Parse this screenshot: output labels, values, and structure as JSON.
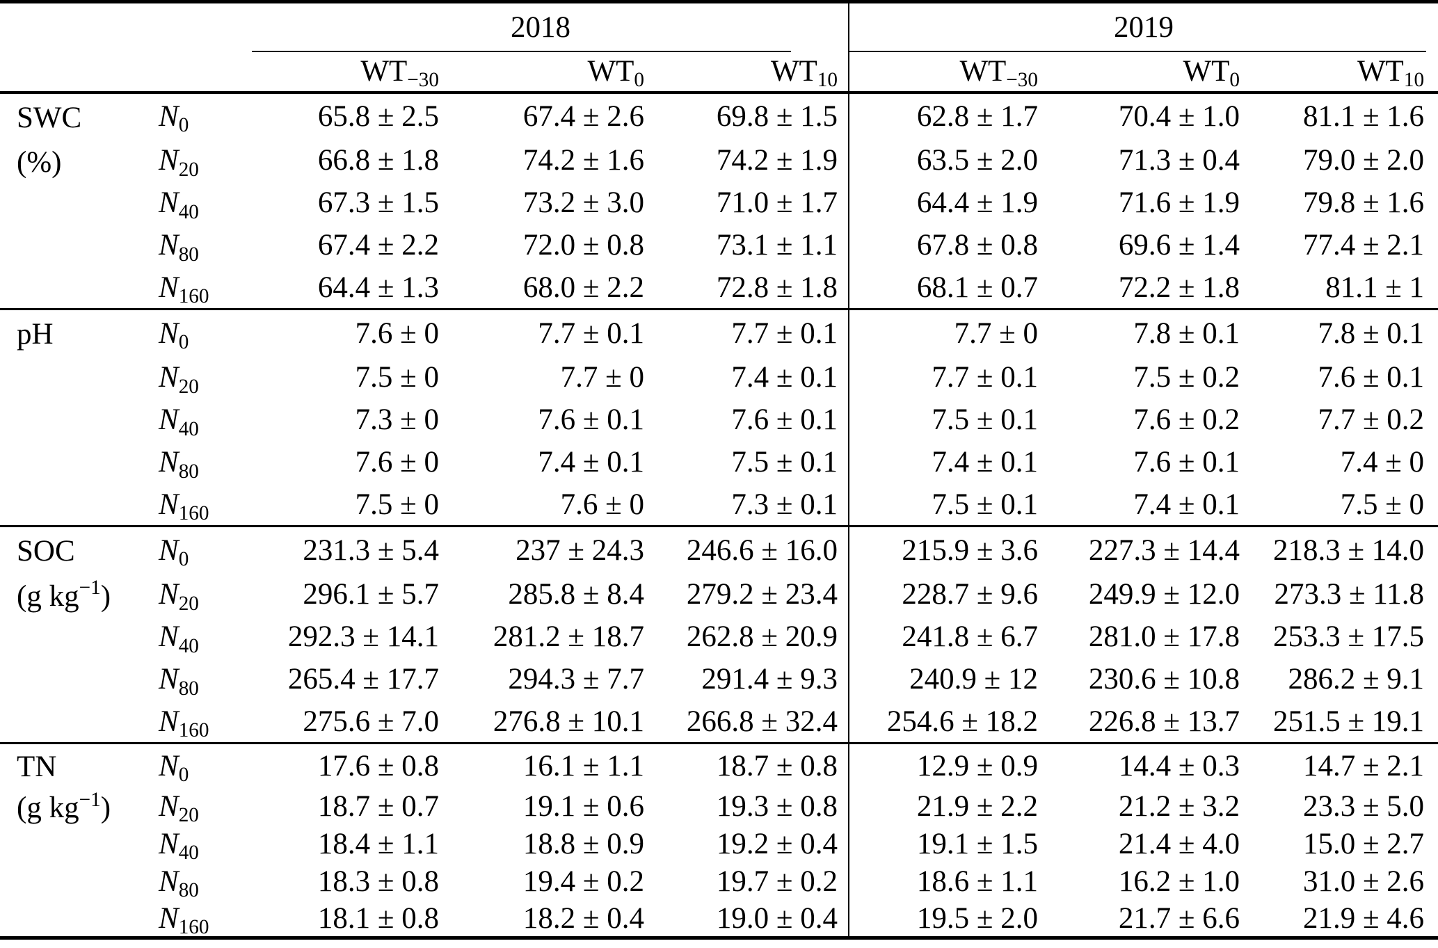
{
  "table": {
    "years": [
      "2018",
      "2019"
    ],
    "wt_columns": [
      {
        "prefix": "WT",
        "sub": "−30"
      },
      {
        "prefix": "WT",
        "sub": "0"
      },
      {
        "prefix": "WT",
        "sub": "10"
      },
      {
        "prefix": "WT",
        "sub": "−30"
      },
      {
        "prefix": "WT",
        "sub": "0"
      },
      {
        "prefix": "WT",
        "sub": "10"
      }
    ],
    "row_groups": [
      {
        "name": "SWC",
        "unit_prefix": "(%)",
        "unit_sup": "",
        "unit_suffix": "",
        "rows": [
          {
            "n": "N",
            "n_sub": "0",
            "values": [
              "65.8 ± 2.5",
              "67.4 ± 2.6",
              "69.8 ± 1.5",
              "62.8 ± 1.7",
              "70.4 ± 1.0",
              "81.1 ± 1.6"
            ]
          },
          {
            "n": "N",
            "n_sub": "20",
            "values": [
              "66.8 ± 1.8",
              "74.2 ± 1.6",
              "74.2 ± 1.9",
              "63.5 ± 2.0",
              "71.3 ± 0.4",
              "79.0 ± 2.0"
            ]
          },
          {
            "n": "N",
            "n_sub": "40",
            "values": [
              "67.3 ± 1.5",
              "73.2 ± 3.0",
              "71.0 ± 1.7",
              "64.4 ± 1.9",
              "71.6 ± 1.9",
              "79.8 ± 1.6"
            ]
          },
          {
            "n": "N",
            "n_sub": "80",
            "values": [
              "67.4 ± 2.2",
              "72.0 ± 0.8",
              "73.1 ± 1.1",
              "67.8 ± 0.8",
              "69.6 ± 1.4",
              "77.4 ± 2.1"
            ]
          },
          {
            "n": "N",
            "n_sub": "160",
            "values": [
              "64.4 ± 1.3",
              "68.0 ± 2.2",
              "72.8 ± 1.8",
              "68.1 ± 0.7",
              "72.2 ± 1.8",
              "81.1 ± 1"
            ]
          }
        ]
      },
      {
        "name": "pH",
        "unit_prefix": "",
        "unit_sup": "",
        "unit_suffix": "",
        "rows": [
          {
            "n": "N",
            "n_sub": "0",
            "values": [
              "7.6 ± 0",
              "7.7 ± 0.1",
              "7.7 ± 0.1",
              "7.7 ± 0",
              "7.8 ± 0.1",
              "7.8 ± 0.1"
            ]
          },
          {
            "n": "N",
            "n_sub": "20",
            "values": [
              "7.5 ± 0",
              "7.7 ± 0",
              "7.4 ± 0.1",
              "7.7 ± 0.1",
              "7.5 ± 0.2",
              "7.6 ± 0.1"
            ]
          },
          {
            "n": "N",
            "n_sub": "40",
            "values": [
              "7.3 ± 0",
              "7.6 ± 0.1",
              "7.6 ± 0.1",
              "7.5 ± 0.1",
              "7.6 ± 0.2",
              "7.7 ± 0.2"
            ]
          },
          {
            "n": "N",
            "n_sub": "80",
            "values": [
              "7.6 ± 0",
              "7.4 ± 0.1",
              "7.5 ± 0.1",
              "7.4 ± 0.1",
              "7.6 ± 0.1",
              "7.4 ± 0"
            ]
          },
          {
            "n": "N",
            "n_sub": "160",
            "values": [
              "7.5 ± 0",
              "7.6 ± 0",
              "7.3 ± 0.1",
              "7.5 ± 0.1",
              "7.4 ± 0.1",
              "7.5 ± 0"
            ]
          }
        ]
      },
      {
        "name": "SOC",
        "unit_prefix": "(g kg",
        "unit_sup": "−1",
        "unit_suffix": ")",
        "rows": [
          {
            "n": "N",
            "n_sub": "0",
            "values": [
              "231.3 ± 5.4",
              "237 ± 24.3",
              "246.6 ± 16.0",
              "215.9 ± 3.6",
              "227.3 ± 14.4",
              "218.3 ± 14.0"
            ]
          },
          {
            "n": "N",
            "n_sub": "20",
            "values": [
              "296.1 ± 5.7",
              "285.8 ± 8.4",
              "279.2 ± 23.4",
              "228.7 ± 9.6",
              "249.9 ± 12.0",
              "273.3 ± 11.8"
            ]
          },
          {
            "n": "N",
            "n_sub": "40",
            "values": [
              "292.3 ± 14.1",
              "281.2 ± 18.7",
              "262.8 ± 20.9",
              "241.8 ± 6.7",
              "281.0 ± 17.8",
              "253.3 ± 17.5"
            ]
          },
          {
            "n": "N",
            "n_sub": "80",
            "values": [
              "265.4 ± 17.7",
              "294.3 ± 7.7",
              "291.4 ± 9.3",
              "240.9 ± 12",
              "230.6 ± 10.8",
              "286.2 ± 9.1"
            ]
          },
          {
            "n": "N",
            "n_sub": "160",
            "values": [
              "275.6 ± 7.0",
              "276.8 ± 10.1",
              "266.8 ± 32.4",
              "254.6 ± 18.2",
              "226.8 ± 13.7",
              "251.5 ± 19.1"
            ]
          }
        ]
      },
      {
        "name": "TN",
        "unit_prefix": "(g kg",
        "unit_sup": "−1",
        "unit_suffix": ")",
        "rows": [
          {
            "n": "N",
            "n_sub": "0",
            "values": [
              "17.6 ± 0.8",
              "16.1 ± 1.1",
              "18.7 ± 0.8",
              "12.9 ± 0.9",
              "14.4 ± 0.3",
              "14.7 ± 2.1"
            ]
          },
          {
            "n": "N",
            "n_sub": "20",
            "values": [
              "18.7 ± 0.7",
              "19.1 ± 0.6",
              "19.3 ± 0.8",
              "21.9 ± 2.2",
              "21.2 ± 3.2",
              "23.3 ± 5.0"
            ]
          },
          {
            "n": "N",
            "n_sub": "40",
            "values": [
              "18.4 ± 1.1",
              "18.8 ± 0.9",
              "19.2 ± 0.4",
              "19.1 ± 1.5",
              "21.4 ± 4.0",
              "15.0 ± 2.7"
            ]
          },
          {
            "n": "N",
            "n_sub": "80",
            "values": [
              "18.3 ± 0.8",
              "19.4 ± 0.2",
              "19.7 ± 0.2",
              "18.6 ± 1.1",
              "16.2 ± 1.0",
              "31.0 ± 2.6"
            ]
          },
          {
            "n": "N",
            "n_sub": "160",
            "values": [
              "18.1 ± 0.8",
              "18.2 ± 0.4",
              "19.0 ± 0.4",
              "19.5 ± 2.0",
              "21.7 ± 6.6",
              "21.9 ± 4.6"
            ]
          }
        ]
      }
    ]
  }
}
